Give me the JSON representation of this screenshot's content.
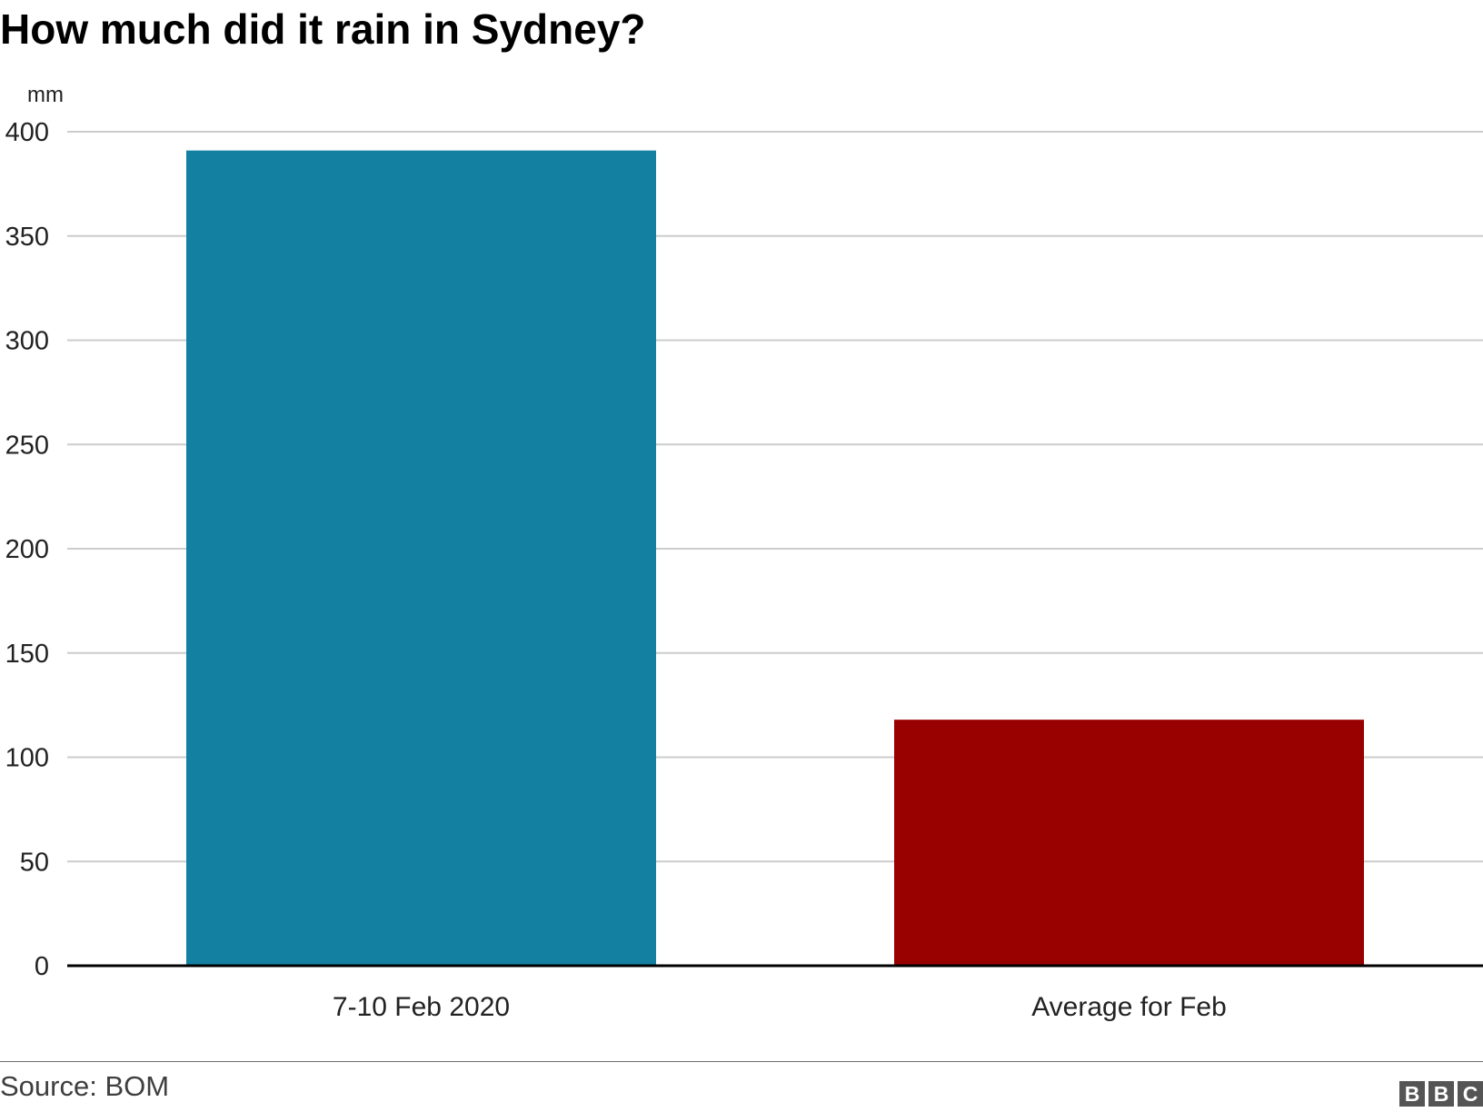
{
  "chart_data": {
    "type": "bar",
    "title": "How much did it rain in Sydney?",
    "ylabel": "mm",
    "xlabel": "",
    "categories": [
      "7-10 Feb 2020",
      "Average for Feb"
    ],
    "values": [
      391,
      118
    ],
    "bar_colors": [
      "#1380a1",
      "#990000"
    ],
    "ylim": [
      0,
      400
    ],
    "yticks": [
      "0",
      "50",
      "100",
      "150",
      "200",
      "250",
      "300",
      "350",
      "400"
    ],
    "grid": true,
    "legend": "none"
  },
  "footer": {
    "source": "Source: BOM",
    "logo_letters": [
      "B",
      "B",
      "C"
    ]
  }
}
